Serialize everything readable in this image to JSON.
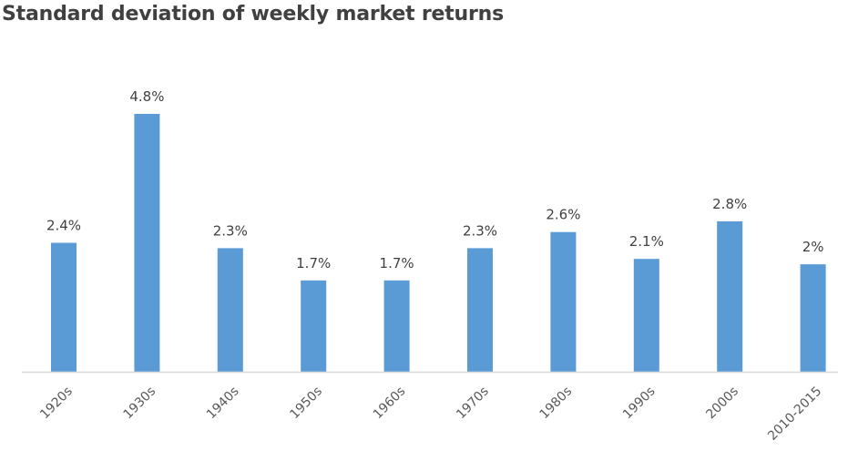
{
  "chart_data": {
    "type": "bar",
    "title": "Standard deviation of weekly market returns",
    "xlabel": "",
    "ylabel": "",
    "categories": [
      "1920s",
      "1930s",
      "1940s",
      "1950s",
      "1960s",
      "1970s",
      "1980s",
      "1990s",
      "2000s",
      "2010-2015"
    ],
    "values": [
      2.4,
      4.8,
      2.3,
      1.7,
      1.7,
      2.3,
      2.6,
      2.1,
      2.8,
      2.0
    ],
    "data_labels": [
      "2.4%",
      "4.8%",
      "2.3%",
      "1.7%",
      "1.7%",
      "2.3%",
      "2.6%",
      "2.1%",
      "2.8%",
      "2%"
    ],
    "ylim": [
      0,
      4.8
    ],
    "grid": false,
    "legend": "none",
    "bar_color": "#5b9bd5"
  }
}
